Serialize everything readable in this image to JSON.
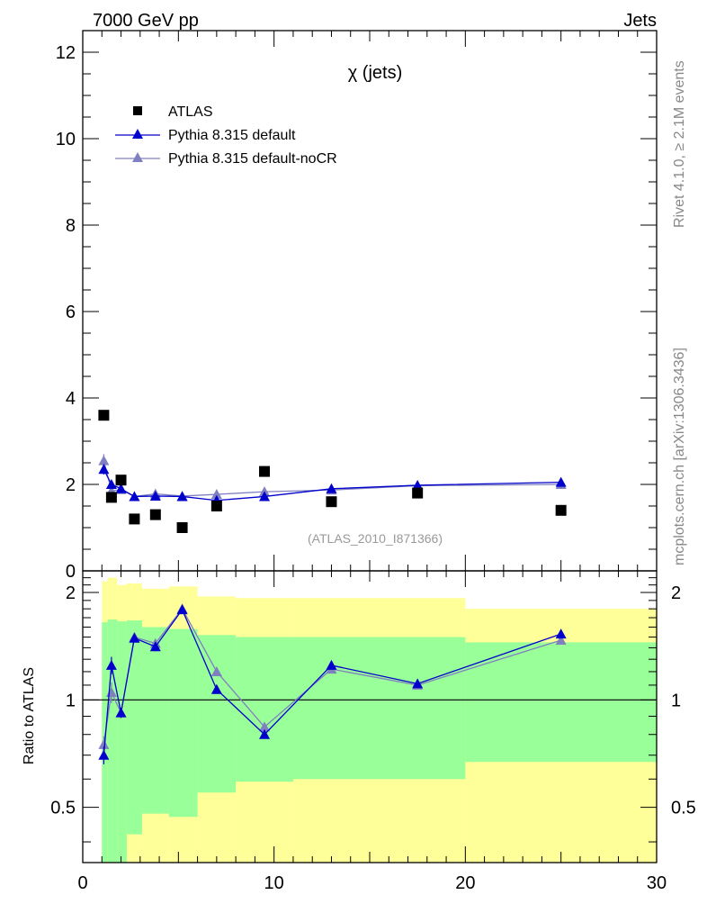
{
  "header": {
    "left": "7000 GeV pp",
    "right": "Jets"
  },
  "side_labels": {
    "rivet": "Rivet 4.1.0, ≥ 2.1M events",
    "mcplots": "mcplots.cern.ch [arXiv:1306.3436]"
  },
  "chart_data": [
    {
      "type": "scatter",
      "title": "χ (jets)",
      "annotation": "(ATLAS_2010_I871366)",
      "xlim": [
        0,
        30
      ],
      "ylim": [
        0,
        12.5
      ],
      "yticks": [
        0,
        2,
        4,
        6,
        8,
        10,
        12
      ],
      "xlabel": "",
      "ylabel": "",
      "series": [
        {
          "name": "ATLAS",
          "style": "square",
          "color": "#000000",
          "x": [
            1.1,
            1.5,
            2.0,
            2.7,
            3.8,
            5.2,
            7.0,
            9.5,
            13.0,
            17.5,
            25.0
          ],
          "values": [
            3.6,
            1.7,
            2.1,
            1.2,
            1.3,
            1.0,
            1.5,
            2.3,
            1.6,
            1.8,
            1.4
          ]
        },
        {
          "name": "Pythia 8.315 default",
          "style": "triangle-line",
          "color": "#0000cc",
          "x": [
            1.1,
            1.5,
            2.0,
            2.7,
            3.8,
            5.2,
            7.0,
            9.5,
            13.0,
            17.5,
            25.0
          ],
          "values": [
            2.35,
            2.0,
            1.9,
            1.72,
            1.73,
            1.72,
            1.63,
            1.72,
            1.9,
            1.98,
            2.05
          ],
          "errors": [
            0.12,
            0.08,
            0.05,
            0.04,
            0.04,
            0.04,
            0.04,
            0.04,
            0.04,
            0.04,
            0.04
          ]
        },
        {
          "name": "Pythia 8.315 default-noCR",
          "style": "triangle-line",
          "color": "#8080c0",
          "x": [
            1.1,
            1.5,
            2.0,
            2.7,
            3.8,
            5.2,
            7.0,
            9.5,
            13.0,
            17.5,
            25.0
          ],
          "values": [
            2.55,
            1.85,
            1.88,
            1.72,
            1.78,
            1.73,
            1.77,
            1.83,
            1.87,
            1.97,
            2.0
          ],
          "errors": [
            0.15,
            0.08,
            0.05,
            0.04,
            0.04,
            0.04,
            0.04,
            0.04,
            0.04,
            0.04,
            0.04
          ]
        }
      ]
    },
    {
      "type": "scatter",
      "title": "",
      "xlim": [
        0,
        30
      ],
      "ylim": [
        0.35,
        2.3
      ],
      "xticks": [
        0,
        10,
        20,
        30
      ],
      "yticks": [
        0.5,
        1,
        2
      ],
      "ylabel": "Ratio to ATLAS",
      "reference": 1,
      "bands": {
        "x_edges": [
          1.0,
          1.3,
          1.8,
          2.3,
          3.1,
          4.5,
          6.0,
          8.0,
          11.0,
          20.0,
          30.0
        ],
        "green_upper": [
          1.65,
          1.68,
          1.66,
          1.67,
          1.6,
          1.58,
          1.52,
          1.5,
          1.5,
          1.45
        ],
        "green_lower": [
          0.35,
          0.32,
          0.35,
          0.42,
          0.48,
          0.47,
          0.55,
          0.59,
          0.6,
          0.67
        ],
        "yellow_upper": [
          2.15,
          2.2,
          2.1,
          2.12,
          2.05,
          2.08,
          1.95,
          1.93,
          1.93,
          1.8
        ],
        "yellow_lower": [
          0.3,
          0.3,
          0.3,
          0.3,
          0.3,
          0.3,
          0.3,
          0.3,
          0.3,
          0.3
        ],
        "green_color": "#99ff99",
        "yellow_color": "#ffff99"
      },
      "series": [
        {
          "name": "Pythia 8.315 default",
          "color": "#0000cc",
          "x": [
            1.1,
            1.5,
            2.0,
            2.7,
            3.8,
            5.2,
            7.0,
            9.5,
            13.0,
            17.5,
            25.0
          ],
          "values": [
            0.7,
            1.25,
            0.92,
            1.49,
            1.41,
            1.79,
            1.07,
            0.8,
            1.25,
            1.11,
            1.53
          ],
          "errors": [
            0.04,
            0.07,
            0.03,
            0.04,
            0.04,
            0.05,
            0.03,
            0.02,
            0.02,
            0.02,
            0.02
          ]
        },
        {
          "name": "Pythia 8.315 default-noCR",
          "color": "#8080c0",
          "x": [
            1.1,
            1.5,
            2.0,
            2.7,
            3.8,
            5.2,
            7.0,
            9.5,
            13.0,
            17.5,
            25.0
          ],
          "values": [
            0.75,
            1.05,
            0.92,
            1.5,
            1.44,
            1.8,
            1.2,
            0.84,
            1.22,
            1.1,
            1.47
          ],
          "errors": [
            0.04,
            0.07,
            0.03,
            0.04,
            0.04,
            0.05,
            0.03,
            0.02,
            0.02,
            0.02,
            0.02
          ]
        }
      ]
    }
  ]
}
